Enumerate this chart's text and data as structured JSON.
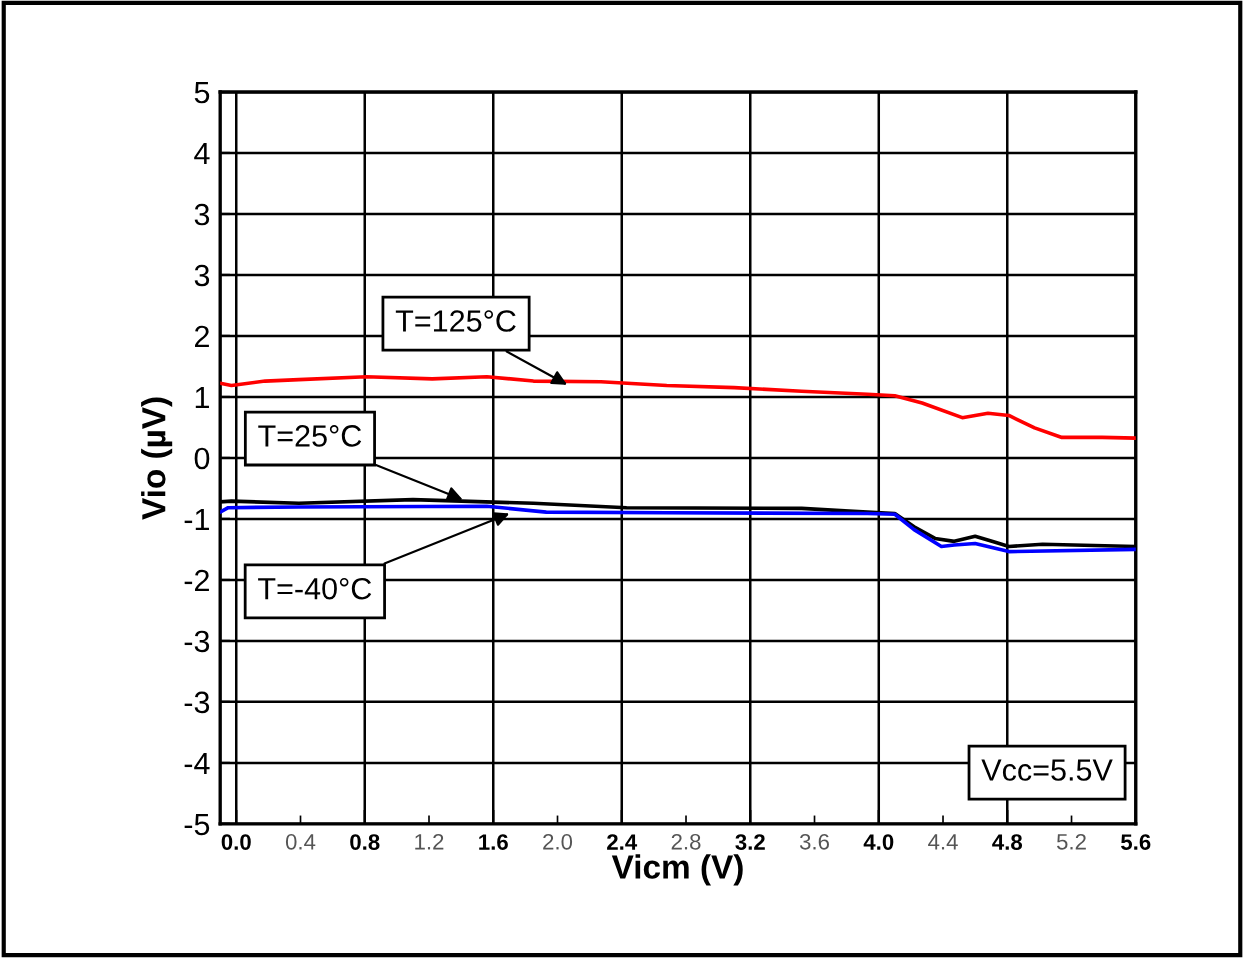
{
  "chart_data": {
    "type": "line",
    "xlabel": "Vicm (V)",
    "ylabel": "Vio (µV)",
    "xlim": [
      -0.1,
      5.6
    ],
    "ylim": [
      -5,
      5
    ],
    "xticks": [
      {
        "value": 0,
        "label": "0.0"
      },
      0.4,
      0.8,
      1.2,
      1.6,
      {
        "value": 2,
        "label": "2.0"
      },
      2.4,
      2.8,
      3.2,
      3.6,
      {
        "value": 4,
        "label": "4.0"
      },
      4.4,
      4.8,
      5.2,
      5.6
    ],
    "yticks": [
      {
        "value": -5,
        "label": "-5"
      },
      {
        "value": -4.167,
        "label": "-4"
      },
      {
        "value": -3.333,
        "label": "-3"
      },
      {
        "value": -2.5,
        "label": "-3"
      },
      {
        "value": -1.667,
        "label": "-2"
      },
      {
        "value": -0.833,
        "label": "-1"
      },
      0,
      {
        "value": 0.833,
        "label": "1"
      },
      {
        "value": 1.667,
        "label": "2"
      },
      {
        "value": 2.5,
        "label": "3"
      },
      {
        "value": 3.333,
        "label": "3"
      },
      {
        "value": 4.167,
        "label": "4"
      },
      5
    ],
    "grid": true,
    "marker": "none",
    "line_style": "solid",
    "series": [
      {
        "color": "#ff0000",
        "x": [
          -0.1,
          -0.03,
          0.18,
          0.39,
          0.81,
          1.22,
          1.56,
          1.85,
          2.27,
          2.68,
          3.1,
          3.52,
          3.93,
          4.1,
          4.27,
          4.52,
          4.68,
          4.81,
          4.97,
          5.14,
          5.39,
          5.6
        ],
        "values": [
          1.02,
          0.99,
          1.05,
          1.07,
          1.11,
          1.08,
          1.11,
          1.05,
          1.04,
          0.99,
          0.96,
          0.91,
          0.87,
          0.85,
          0.75,
          0.55,
          0.61,
          0.58,
          0.41,
          0.28,
          0.28,
          0.27
        ]
      },
      {
        "color": "#000000",
        "x": [
          -0.1,
          -0.03,
          0.39,
          1.1,
          1.85,
          2.43,
          3.52,
          3.93,
          4.1,
          4.22,
          4.35,
          4.47,
          4.6,
          4.72,
          4.81,
          5.02,
          5.6
        ],
        "values": [
          -0.6,
          -0.59,
          -0.62,
          -0.57,
          -0.62,
          -0.68,
          -0.69,
          -0.74,
          -0.76,
          -0.94,
          -1.1,
          -1.14,
          -1.07,
          -1.15,
          -1.21,
          -1.18,
          -1.21
        ]
      },
      {
        "color": "#0000ff",
        "x": [
          -0.1,
          -0.05,
          0.39,
          1.56,
          1.93,
          2.68,
          3.93,
          4.1,
          4.22,
          4.39,
          4.47,
          4.6,
          4.81,
          5.6
        ],
        "values": [
          -0.74,
          -0.68,
          -0.67,
          -0.66,
          -0.74,
          -0.75,
          -0.76,
          -0.77,
          -0.98,
          -1.21,
          -1.19,
          -1.17,
          -1.28,
          -1.25
        ]
      }
    ],
    "annotations": [
      {
        "text": "T=125°C",
        "x": 2.06,
        "y": 1.0
      },
      {
        "text": "T=25°C",
        "x": 1.41,
        "y": -0.57
      },
      {
        "text": "T=-40°C",
        "x": 1.7,
        "y": -0.76
      },
      "Vcc=5.5V"
    ]
  }
}
